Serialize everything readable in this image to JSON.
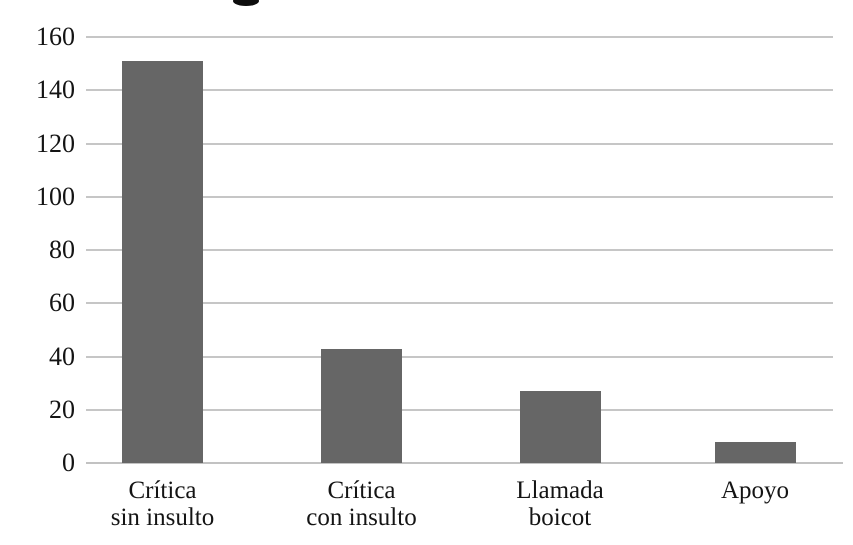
{
  "chart_data": {
    "type": "bar",
    "title": "",
    "title_cropped": true,
    "categories": [
      [
        "Crítica",
        "sin insulto"
      ],
      [
        "Crítica",
        "con insulto"
      ],
      [
        "Llamada",
        "boicot"
      ],
      [
        "Apoyo"
      ]
    ],
    "values": [
      151,
      43,
      27,
      8
    ],
    "xlabel": "",
    "ylabel": "",
    "ylim": [
      0,
      160
    ],
    "yticks": [
      0,
      20,
      40,
      60,
      80,
      100,
      120,
      140,
      160
    ],
    "grid": true,
    "legend": "none",
    "colors": {
      "bar": "#666666",
      "gridline": "#c6c6c6",
      "text": "#141414",
      "background": "#ffffff"
    }
  }
}
